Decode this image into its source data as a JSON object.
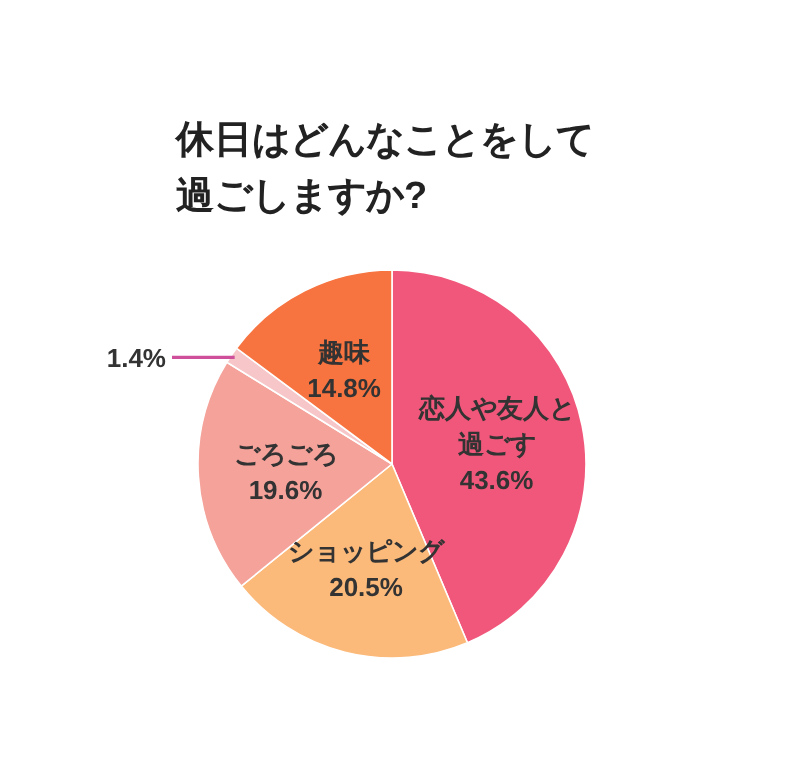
{
  "chart_data": {
    "type": "pie",
    "title": "休日はどんなことをして過ごしますか?",
    "categories": [
      "恋人や友人と過ごす",
      "ショッピング",
      "ごろごろ",
      null,
      "趣味"
    ],
    "values": [
      43.6,
      20.5,
      19.6,
      1.4,
      14.8
    ],
    "colors": [
      "#f0577a",
      "#fbb97a",
      "#f4a29a",
      "#f6c6c8",
      "#f7733f"
    ],
    "value_labels": [
      "43.6%",
      "20.5%",
      "19.6%",
      "1.4%",
      "14.8%"
    ]
  }
}
